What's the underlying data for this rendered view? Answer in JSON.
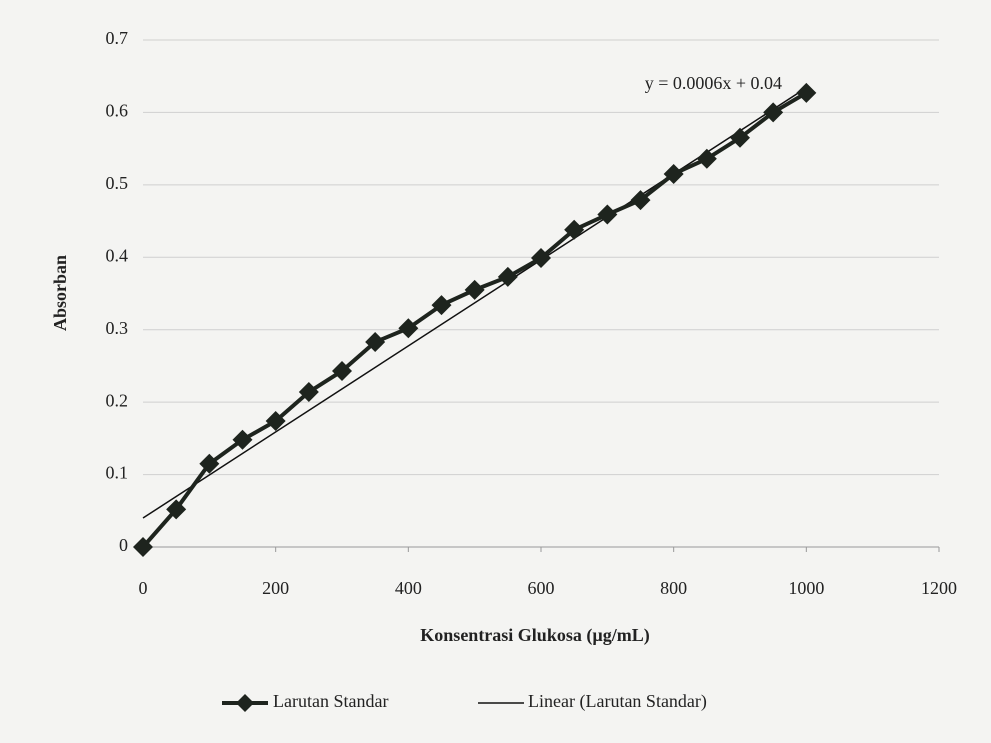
{
  "chart_data": {
    "type": "line",
    "xlabel": "Konsentrasi Glukosa (µg/mL)",
    "ylabel": "Absorban",
    "annotation": "y = 0.0006x + 0.04",
    "xlim": [
      0,
      1200
    ],
    "xticks": [
      0,
      200,
      400,
      600,
      800,
      1000,
      1200
    ],
    "ylim": [
      0,
      0.7
    ],
    "yticks": [
      0,
      0.1,
      0.2,
      0.3,
      0.4,
      0.5,
      0.6,
      0.7
    ],
    "grid": true,
    "legend": "bottom",
    "series": [
      {
        "name": "Larutan Standar",
        "color": "#1e241e",
        "marker": "diamond",
        "x": [
          0,
          50,
          100,
          150,
          200,
          250,
          300,
          350,
          400,
          450,
          500,
          550,
          600,
          650,
          700,
          750,
          800,
          850,
          900,
          950,
          1000
        ],
        "values": [
          0,
          0.052,
          0.115,
          0.148,
          0.174,
          0.214,
          0.243,
          0.283,
          0.302,
          0.334,
          0.355,
          0.373,
          0.399,
          0.438,
          0.459,
          0.479,
          0.515,
          0.536,
          0.565,
          0.6,
          0.627
        ]
      },
      {
        "name": "Linear (Larutan Standar)",
        "color": "#111111",
        "marker": "none",
        "x": [
          0,
          1000
        ],
        "values": [
          0.04,
          0.634
        ]
      }
    ]
  }
}
